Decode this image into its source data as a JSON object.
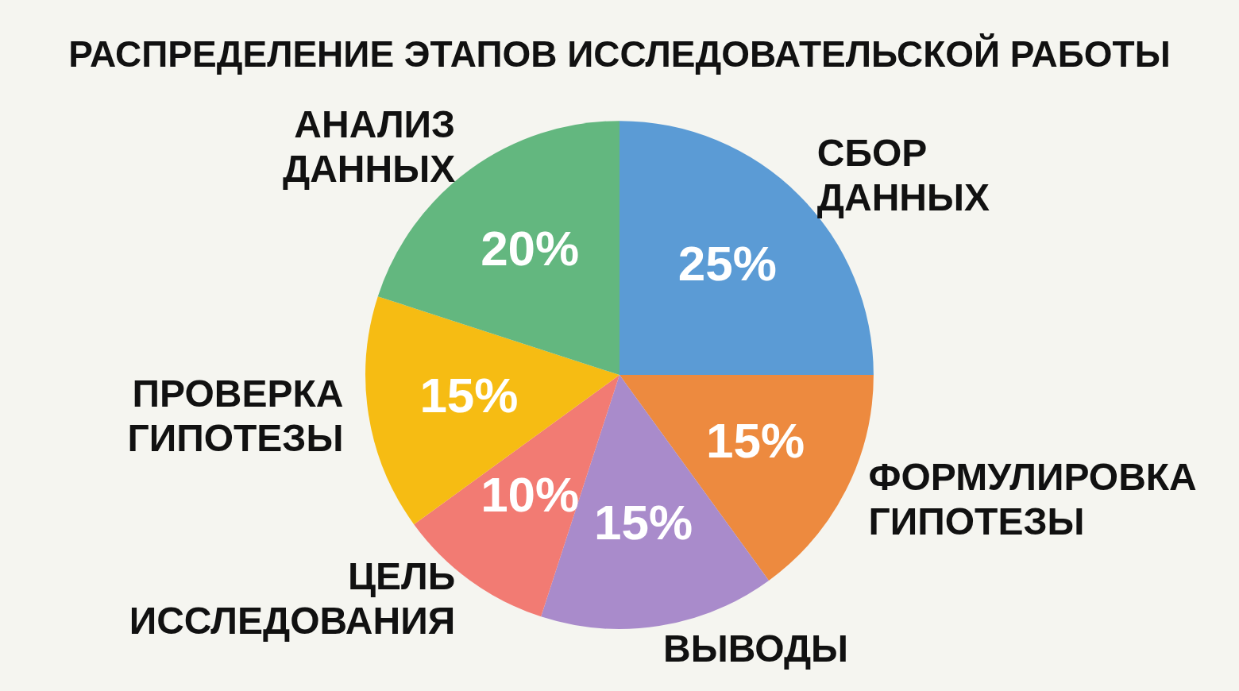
{
  "chart_data": {
    "type": "pie",
    "title": "РАСПРЕДЕЛЕНИЕ ЭТАПОВ ИССЛЕДОВАТЕЛЬСКОЙ РАБОТЫ",
    "categories": [
      "СБОР ДАННЫХ",
      "ФОРМУЛИРОВКА ГИПОТЕЗЫ",
      "ВЫВОДЫ",
      "ЦЕЛЬ ИССЛЕДОВАНИЯ",
      "ПРОВЕРКА ГИПОТЕЗЫ",
      "АНАЛИЗ ДАННЫХ"
    ],
    "values": [
      25,
      15,
      15,
      10,
      15,
      20
    ],
    "value_labels": [
      "25%",
      "15%",
      "15%",
      "10%",
      "15%",
      "20%"
    ],
    "colors": [
      "#5b9bd5",
      "#ed8a3f",
      "#a98bcb",
      "#f27b73",
      "#f6bc13",
      "#63b77f"
    ],
    "legend": false
  }
}
